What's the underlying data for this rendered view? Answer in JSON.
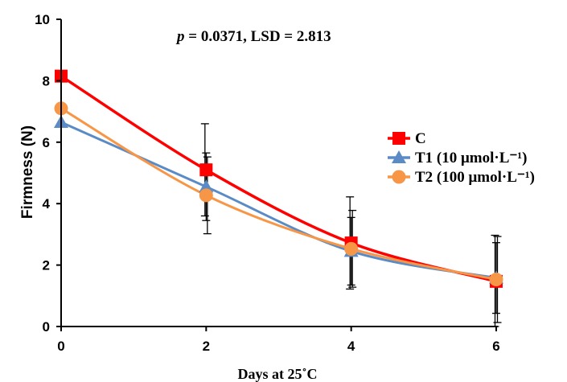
{
  "chart_data": {
    "type": "line",
    "title": "",
    "annotation_p": "p",
    "annotation_rest": " = 0.0371, LSD = 2.813",
    "xlabel": "Days at 25˚C",
    "ylabel": "Firmness (N)",
    "x": [
      0,
      2,
      4,
      6
    ],
    "xlim": [
      0,
      6
    ],
    "ylim": [
      0,
      10
    ],
    "xticks": [
      0,
      2,
      4,
      6
    ],
    "yticks": [
      0,
      2,
      4,
      6,
      8,
      10
    ],
    "grid": false,
    "legend_position": "right",
    "series": [
      {
        "name": "C",
        "color": "#ff0000",
        "marker": "square",
        "values": [
          8.15,
          5.1,
          2.72,
          1.47
        ],
        "errors": [
          0,
          1.5,
          1.5,
          1.5
        ]
      },
      {
        "name": "T1 (10 μmol·L⁻¹)",
        "color": "#5b8bc6",
        "marker": "triangle",
        "values": [
          6.65,
          4.55,
          2.45,
          1.58
        ],
        "errors": [
          0,
          1.1,
          1.1,
          1.15
        ]
      },
      {
        "name": "T2 (100 μmol·L⁻¹)",
        "color": "#f79646",
        "marker": "circle",
        "values": [
          7.1,
          4.27,
          2.53,
          1.53
        ],
        "errors": [
          0,
          1.25,
          1.25,
          1.4
        ]
      }
    ]
  }
}
